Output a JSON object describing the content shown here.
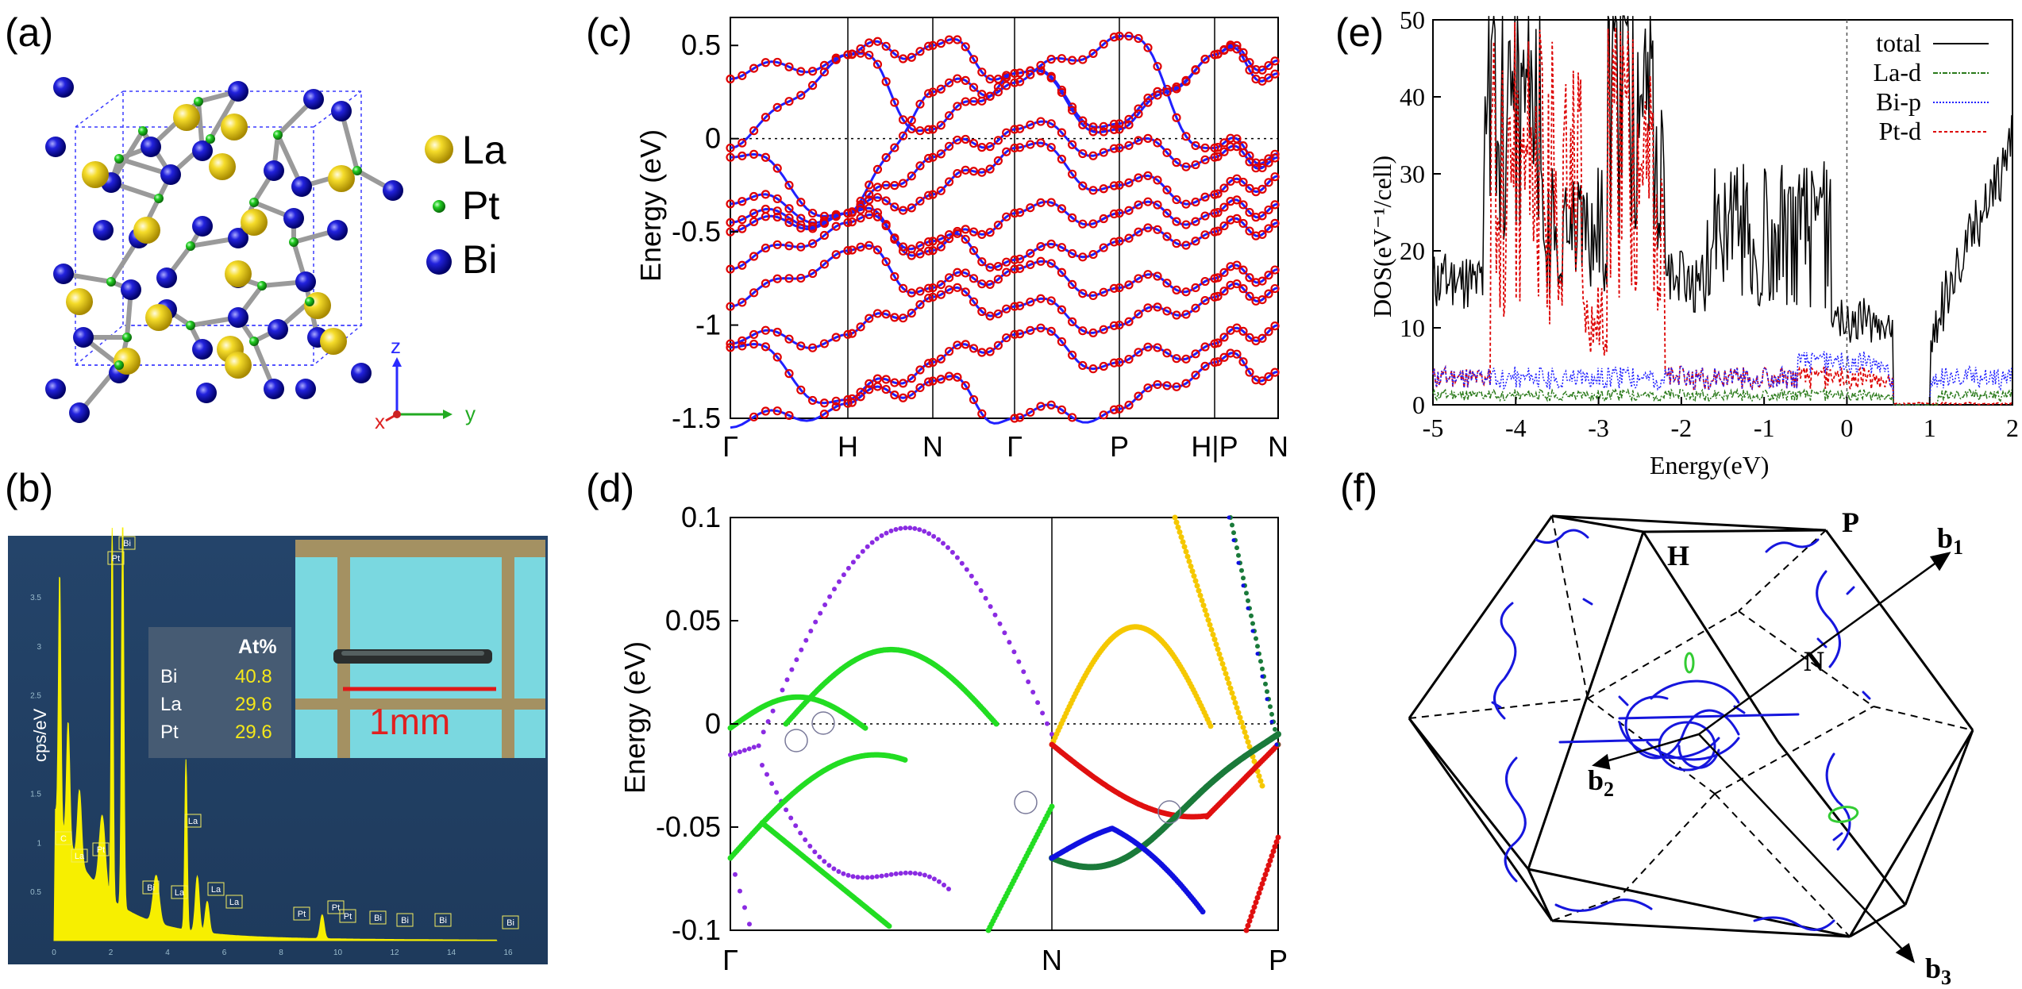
{
  "panel_labels": [
    "(a)",
    "(b)",
    "(c)",
    "(d)",
    "(e)",
    "(f)"
  ],
  "panel_a": {
    "legend": [
      {
        "label": "La",
        "color": "#f2d21a"
      },
      {
        "label": "Pt",
        "color": "#22c02a"
      },
      {
        "label": "Bi",
        "color": "#1a1acc"
      }
    ],
    "axes": {
      "z": "z",
      "y": "y",
      "x": "x"
    }
  },
  "panel_b": {
    "table": {
      "header": "At%",
      "rows": [
        {
          "el": "Bi",
          "val": "40.8"
        },
        {
          "el": "La",
          "val": "29.6"
        },
        {
          "el": "Pt",
          "val": "29.6"
        }
      ]
    },
    "scale_label": "1mm",
    "peak_tags": [
      "Pt",
      "Bi",
      "C",
      "La",
      "Pt",
      "Bi",
      "La",
      "La",
      "La",
      "La",
      "Pt",
      "Pt",
      "Pt",
      "Bi",
      "Bi",
      "Bi",
      "Bi"
    ],
    "y_axis_label": "cps/eV",
    "y_ticks": [
      "3.5",
      "3",
      "2.5",
      "2",
      "1.5",
      "1",
      "0.5"
    ],
    "x_ticks": [
      "0",
      "2",
      "4",
      "6",
      "8",
      "10",
      "12",
      "14",
      "16"
    ]
  },
  "chart_data": [
    {
      "type": "line",
      "id": "c",
      "title": "",
      "xlabel": "",
      "ylabel": "Energy (eV)",
      "ylim": [
        -1.5,
        0.65
      ],
      "y_ticks": [
        "0.5",
        "0",
        "-0.5",
        "-1",
        "-1.5"
      ],
      "k_labels": [
        "Γ",
        "H",
        "N",
        "Γ",
        "P",
        "H|P",
        "N"
      ],
      "series_colors": {
        "fatband": "#e00000",
        "band": "#2020ff"
      },
      "note": "band structure along Γ-H-N-Γ-P-H|P-N; red circles = projected weight"
    },
    {
      "type": "line",
      "id": "d",
      "xlabel": "",
      "ylabel": "Energy (eV)",
      "ylim": [
        -0.1,
        0.1
      ],
      "y_ticks": [
        "0.1",
        "0.05",
        "0",
        "-0.05",
        "-0.1"
      ],
      "k_labels": [
        "Γ",
        "N",
        "P"
      ],
      "series": [
        {
          "name": "band-purple",
          "color": "#8a2be2"
        },
        {
          "name": "band-green",
          "color": "#22dd22"
        },
        {
          "name": "band-yellow",
          "color": "#f5c800"
        },
        {
          "name": "band-red",
          "color": "#e01010"
        },
        {
          "name": "band-darkgreen",
          "color": "#1a7a3a"
        },
        {
          "name": "band-blue",
          "color": "#1010e0"
        }
      ]
    },
    {
      "type": "line",
      "id": "e",
      "xlabel": "Energy(eV)",
      "ylabel": "DOS(eV⁻¹/cell)",
      "xlim": [
        -5,
        2
      ],
      "ylim": [
        0,
        50
      ],
      "x_ticks": [
        "-5",
        "-4",
        "-3",
        "-2",
        "-1",
        "0",
        "1",
        "2"
      ],
      "y_ticks": [
        "0",
        "10",
        "20",
        "30",
        "40",
        "50"
      ],
      "series": [
        {
          "name": "total",
          "color": "#000000"
        },
        {
          "name": "La-d",
          "color": "#2a7a1a"
        },
        {
          "name": "Bi-p",
          "color": "#2222ff"
        },
        {
          "name": "Pt-d",
          "color": "#dd0000"
        }
      ]
    }
  ],
  "panel_f": {
    "points": [
      "H",
      "P",
      "N"
    ],
    "vectors": [
      {
        "name": "b",
        "sub": "1"
      },
      {
        "name": "b",
        "sub": "2"
      },
      {
        "name": "b",
        "sub": "3"
      }
    ]
  }
}
